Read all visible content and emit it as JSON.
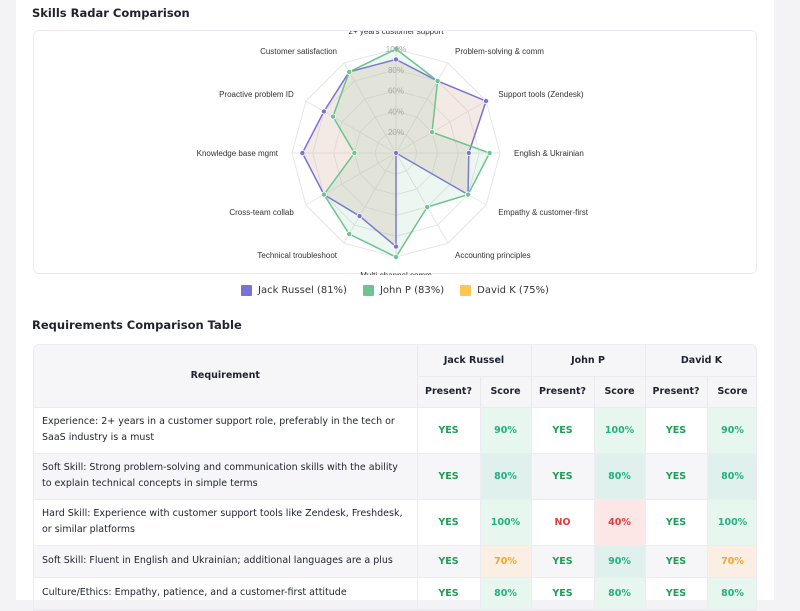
{
  "radar_section": {
    "title": "Skills Radar Comparison"
  },
  "table_section": {
    "title": "Requirements Comparison Table"
  },
  "chart_data": {
    "type": "radar",
    "title": "Skills Radar Comparison",
    "axes": [
      "2+ years customer support",
      "Problem-solving & comm",
      "Support tools (Zendesk)",
      "English & Ukrainian",
      "Empathy & customer-first",
      "Accounting principles",
      "Multi-channel comm",
      "Technical troubleshoot",
      "Cross-team collab",
      "Knowledge base mgmt",
      "Proactive problem ID",
      "Customer satisfaction"
    ],
    "ticks": [
      "20%",
      "40%",
      "60%",
      "80%",
      "100%"
    ],
    "range": [
      0,
      100
    ],
    "legend_position": "bottom",
    "series": [
      {
        "name": "Jack Russel",
        "legend": "Jack Russel (81%)",
        "color": "#7b72d8",
        "fill": "rgba(214,178,160,0.28)",
        "visible": true,
        "values": [
          90,
          80,
          100,
          70,
          80,
          0,
          90,
          70,
          80,
          90,
          80,
          90
        ]
      },
      {
        "name": "John P",
        "legend": "John P (83%)",
        "color": "#6cc490",
        "fill": "rgba(108,196,144,0.13)",
        "visible": true,
        "values": [
          100,
          80,
          40,
          90,
          80,
          60,
          100,
          90,
          80,
          40,
          70,
          90
        ]
      },
      {
        "name": "David K",
        "legend": "David K (75%)",
        "color": "#fcc74f",
        "fill": "rgba(252,199,79,0.15)",
        "visible": false,
        "values": []
      }
    ]
  },
  "table": {
    "requirement_header": "Requirement",
    "candidates": [
      "Jack Russel",
      "John P",
      "David K"
    ],
    "present_header": "Present?",
    "score_header": "Score",
    "rows": [
      {
        "requirement": "Experience: 2+ years in a customer support role, preferably in the tech or SaaS industry is a must",
        "cells": [
          {
            "present": "YES",
            "score": "90%"
          },
          {
            "present": "YES",
            "score": "100%"
          },
          {
            "present": "YES",
            "score": "90%"
          }
        ]
      },
      {
        "requirement": "Soft Skill: Strong problem-solving and communication skills with the ability to explain technical concepts in simple terms",
        "cells": [
          {
            "present": "YES",
            "score": "80%"
          },
          {
            "present": "YES",
            "score": "80%"
          },
          {
            "present": "YES",
            "score": "80%"
          }
        ]
      },
      {
        "requirement": "Hard Skill: Experience with customer support tools like Zendesk, Freshdesk, or similar platforms",
        "cells": [
          {
            "present": "YES",
            "score": "100%"
          },
          {
            "present": "NO",
            "score": "40%"
          },
          {
            "present": "YES",
            "score": "100%"
          }
        ]
      },
      {
        "requirement": "Soft Skill: Fluent in English and Ukrainian; additional languages are a plus",
        "cells": [
          {
            "present": "YES",
            "score": "70%"
          },
          {
            "present": "YES",
            "score": "90%"
          },
          {
            "present": "YES",
            "score": "70%"
          }
        ]
      },
      {
        "requirement": "Culture/Ethics: Empathy, patience, and a customer-first attitude",
        "cells": [
          {
            "present": "YES",
            "score": "80%"
          },
          {
            "present": "YES",
            "score": "80%"
          },
          {
            "present": "YES",
            "score": "80%"
          }
        ]
      }
    ]
  }
}
